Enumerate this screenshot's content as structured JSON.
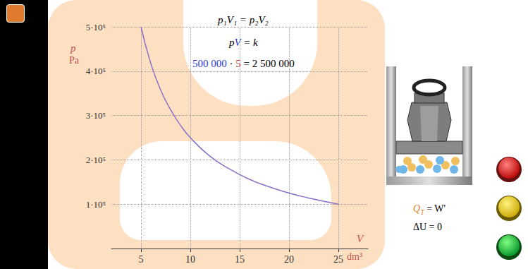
{
  "chart_data": {
    "type": "line",
    "x_label": "V",
    "x_unit": "dm³",
    "y_label": "p",
    "y_unit": "Pa",
    "x": [
      5,
      6,
      7,
      8,
      9,
      10,
      12,
      14,
      16,
      18,
      20,
      22,
      25
    ],
    "values": [
      500000,
      417000,
      357000,
      313000,
      278000,
      250000,
      208000,
      179000,
      156000,
      139000,
      125000,
      114000,
      100000
    ],
    "color": "#8a6fc8",
    "xlim": [
      2,
      28
    ],
    "xticks": [
      5,
      10,
      15,
      20,
      {
        "value": 25,
        "label": "25"
      }
    ],
    "ylim": [
      0,
      500000
    ],
    "yticks": [
      {
        "value": 100000,
        "label": "1·10⁵"
      },
      {
        "value": 200000,
        "label": "2·10⁵"
      },
      {
        "value": 300000,
        "label": "3·10⁵"
      },
      {
        "value": 400000,
        "label": "4·10⁵"
      },
      {
        "value": 500000,
        "label": "5·10⁵"
      }
    ],
    "grid": true,
    "annotations": [
      {
        "parts": [
          "p₁V₁ = p₂V₂"
        ]
      },
      {
        "parts": [
          "p",
          "V",
          " = k"
        ]
      },
      {
        "parts": [
          "500 000",
          " · ",
          "5",
          " = 2 500 000"
        ]
      }
    ]
  },
  "side_panel": {
    "formulas": [
      {
        "parts": [
          "Q",
          "T",
          " = W'"
        ]
      },
      {
        "parts": [
          "ΔU = 0"
        ]
      }
    ]
  }
}
